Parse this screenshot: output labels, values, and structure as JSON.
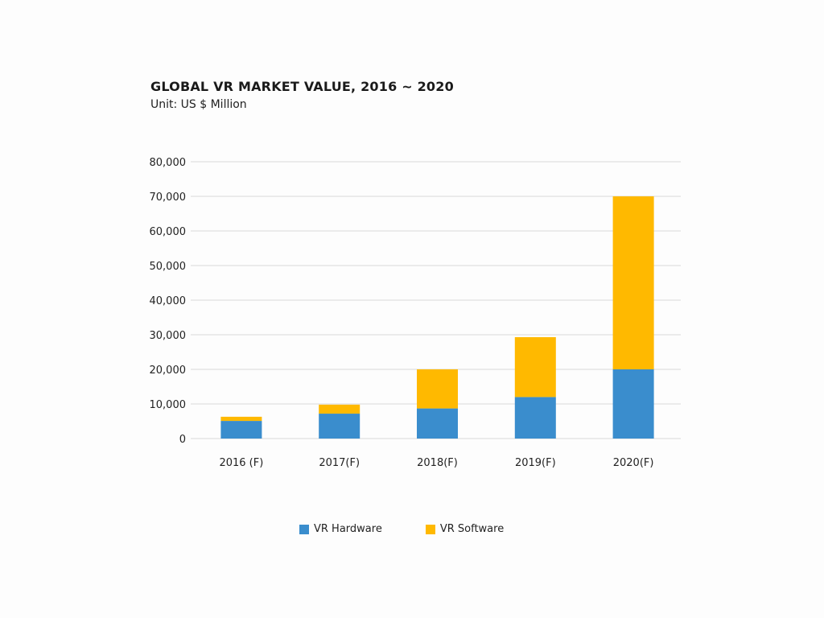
{
  "chart_data": {
    "type": "bar",
    "stacked": true,
    "title": "GLOBAL VR MARKET VALUE, 2016 ~ 2020",
    "subtitle": "Unit: US $ Million",
    "xlabel": "",
    "ylabel": "",
    "categories": [
      "2016 (F)",
      "2017(F)",
      "2018(F)",
      "2019(F)",
      "2020(F)"
    ],
    "series": [
      {
        "name": "VR Hardware",
        "color": "#3a8dcd",
        "values": [
          5100,
          7200,
          8700,
          12000,
          20000
        ]
      },
      {
        "name": "VR Software",
        "color": "#ffb900",
        "values": [
          1200,
          2600,
          11300,
          17300,
          50000
        ]
      }
    ],
    "ylim": [
      0,
      80000
    ],
    "yticks": [
      0,
      10000,
      20000,
      30000,
      40000,
      50000,
      60000,
      70000,
      80000
    ],
    "ytick_labels": [
      "0",
      "10,000",
      "20,000",
      "30,000",
      "40,000",
      "50,000",
      "60,000",
      "70,000",
      "80,000"
    ],
    "grid": true,
    "legend_position": "bottom-center"
  }
}
